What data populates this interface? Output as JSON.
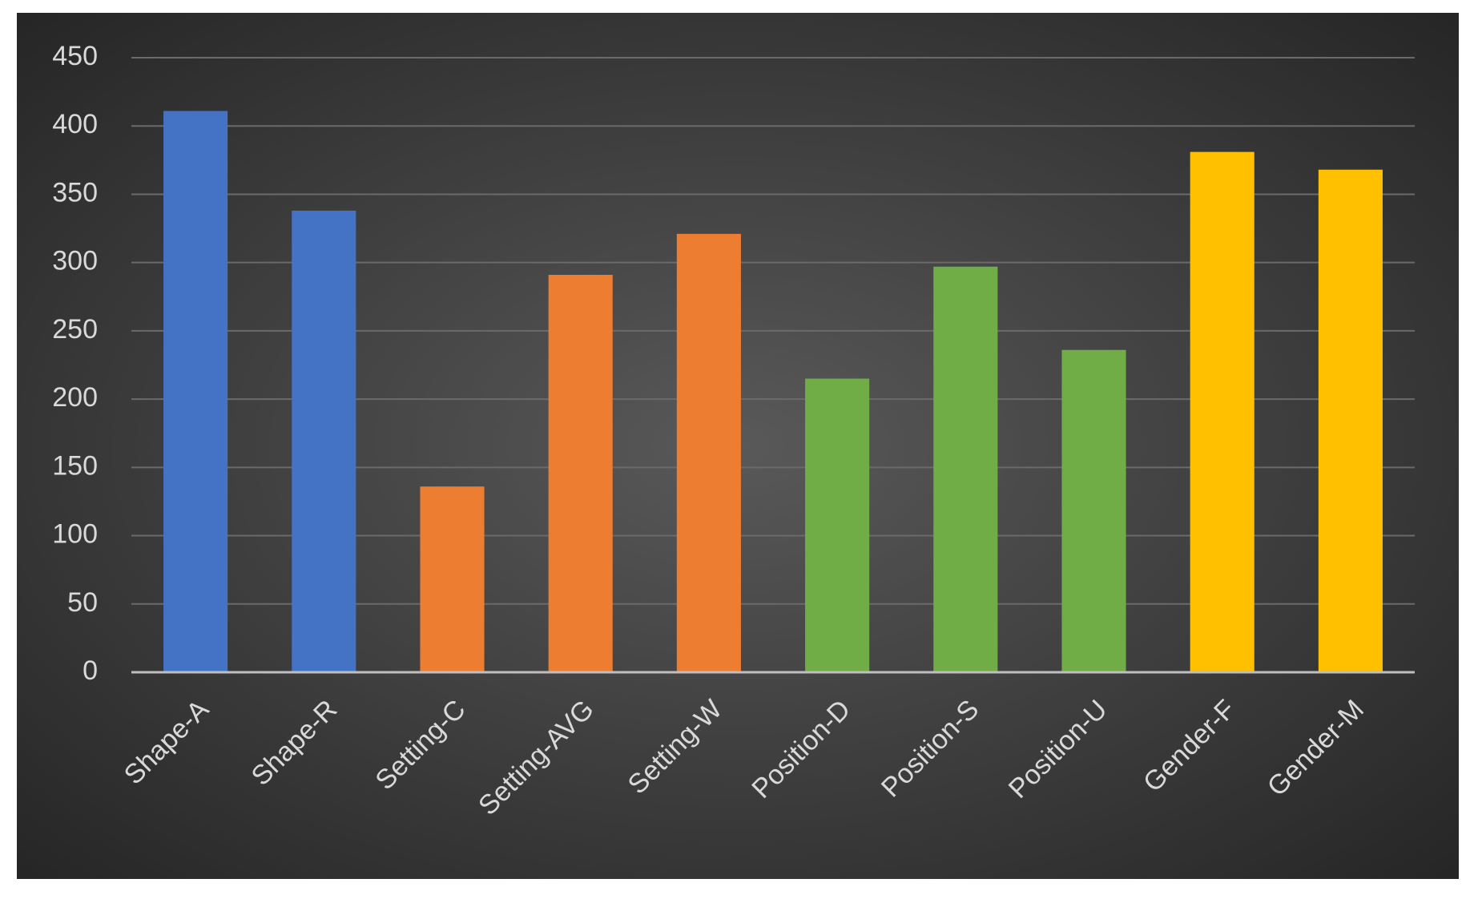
{
  "chart_data": {
    "type": "bar",
    "categories": [
      "Shape-A",
      "Shape-R",
      "Setting-C",
      "Setting-AVG",
      "Setting-W",
      "Position-D",
      "Position-S",
      "Position-U",
      "Gender-F",
      "Gender-M"
    ],
    "values": [
      411,
      338,
      136,
      291,
      321,
      215,
      297,
      236,
      381,
      368
    ],
    "colors": [
      "#4472c4",
      "#4472c4",
      "#ed7d31",
      "#ed7d31",
      "#ed7d31",
      "#70ad47",
      "#70ad47",
      "#70ad47",
      "#ffc000",
      "#ffc000"
    ],
    "ylim": [
      0,
      450
    ],
    "yticks": [
      0,
      50,
      100,
      150,
      200,
      250,
      300,
      350,
      400,
      450
    ],
    "grid": true
  }
}
